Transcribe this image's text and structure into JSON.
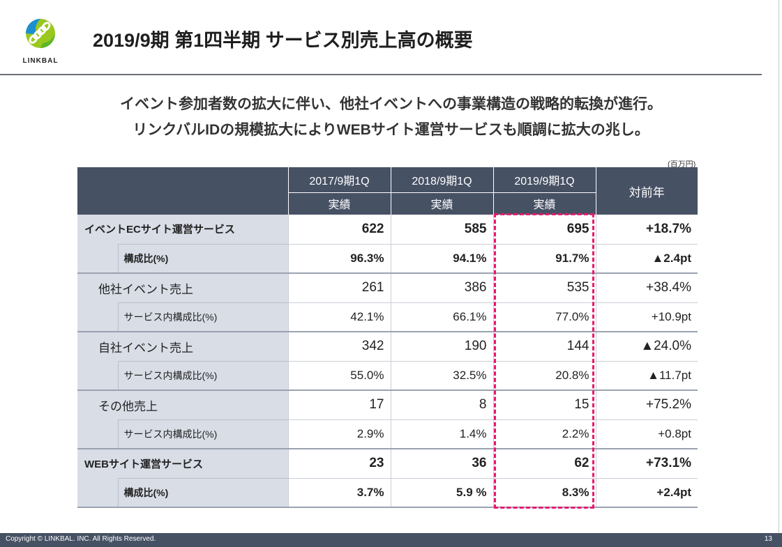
{
  "brand": {
    "name": "LINKBAL"
  },
  "title": "2019/9期 第1四半期 サービス別売上高の概要",
  "subtitle": [
    "イベント参加者数の拡大に伴い、他社イベントへの事業構造の戦略的転換が進行。",
    "リンクバルIDの規模拡大によりWEBサイト運営サービスも順調に拡大の兆し。"
  ],
  "unit": "(百万円)",
  "table": {
    "columns": [
      {
        "period": "2017/9期1Q",
        "sub": "実績"
      },
      {
        "period": "2018/9期1Q",
        "sub": "実績"
      },
      {
        "period": "2019/9期1Q",
        "sub": "実績"
      }
    ],
    "yoy_header": "対前年",
    "rows": [
      {
        "label": "イベントECサイト運営サービス",
        "values": [
          "622",
          "585",
          "695"
        ],
        "yoy": "+18.7%"
      },
      {
        "label": "構成比(%)",
        "values": [
          "96.3%",
          "94.1%",
          "91.7%"
        ],
        "yoy": "▲2.4pt"
      },
      {
        "label": "他社イベント売上",
        "values": [
          "261",
          "386",
          "535"
        ],
        "yoy": "+38.4%"
      },
      {
        "label": "サービス内構成比(%)",
        "values": [
          "42.1%",
          "66.1%",
          "77.0%"
        ],
        "yoy": "+10.9pt"
      },
      {
        "label": "自社イベント売上",
        "values": [
          "342",
          "190",
          "144"
        ],
        "yoy": "▲24.0%"
      },
      {
        "label": "サービス内構成比(%)",
        "values": [
          "55.0%",
          "32.5%",
          "20.8%"
        ],
        "yoy": "▲11.7pt"
      },
      {
        "label": "その他売上",
        "values": [
          "17",
          "8",
          "15"
        ],
        "yoy": "+75.2%"
      },
      {
        "label": "サービス内構成比(%)",
        "values": [
          "2.9%",
          "1.4%",
          "2.2%"
        ],
        "yoy": "+0.8pt"
      },
      {
        "label": "WEBサイト運営サービス",
        "values": [
          "23",
          "36",
          "62"
        ],
        "yoy": "+73.1%"
      },
      {
        "label": "構成比(%)",
        "values": [
          "3.7%",
          "5.9 %",
          "8.3%"
        ],
        "yoy": "+2.4pt"
      }
    ]
  },
  "footer": {
    "copyright": "Copyright © LINKBAL. INC. All Rights Reserved.",
    "page": "13"
  },
  "colors": {
    "header_bg": "#475164",
    "label_bg": "#d8dde6",
    "highlight": "#e8196e"
  }
}
